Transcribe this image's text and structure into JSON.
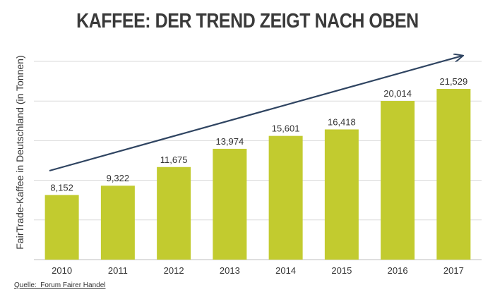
{
  "title": "KAFFEE: DER TREND ZEIGT NACH OBEN",
  "source": "Quelle:  Forum Fairer Handel",
  "colors": {
    "bar": "#c2cb2f",
    "arrow": "#2f4461",
    "grid": "#d9d9d9",
    "text": "#333333"
  },
  "chart_data": {
    "type": "bar",
    "title": "KAFFEE: DER TREND ZEIGT NACH OBEN",
    "xlabel": "",
    "ylabel": "FairTrade-Kaffee in Deutschland (in Tonnen)",
    "categories": [
      "2010",
      "2011",
      "2012",
      "2013",
      "2014",
      "2015",
      "2016",
      "2017"
    ],
    "values": [
      8152,
      9322,
      11675,
      13974,
      15601,
      16418,
      20014,
      21529
    ],
    "data_labels": [
      "8,152",
      "9,322",
      "11,675",
      "13,974",
      "15,601",
      "16,418",
      "20,014",
      "21,529"
    ],
    "ylim": [
      0,
      25000
    ],
    "grid": true,
    "legend": "none",
    "annotation": "upward trend arrow"
  }
}
